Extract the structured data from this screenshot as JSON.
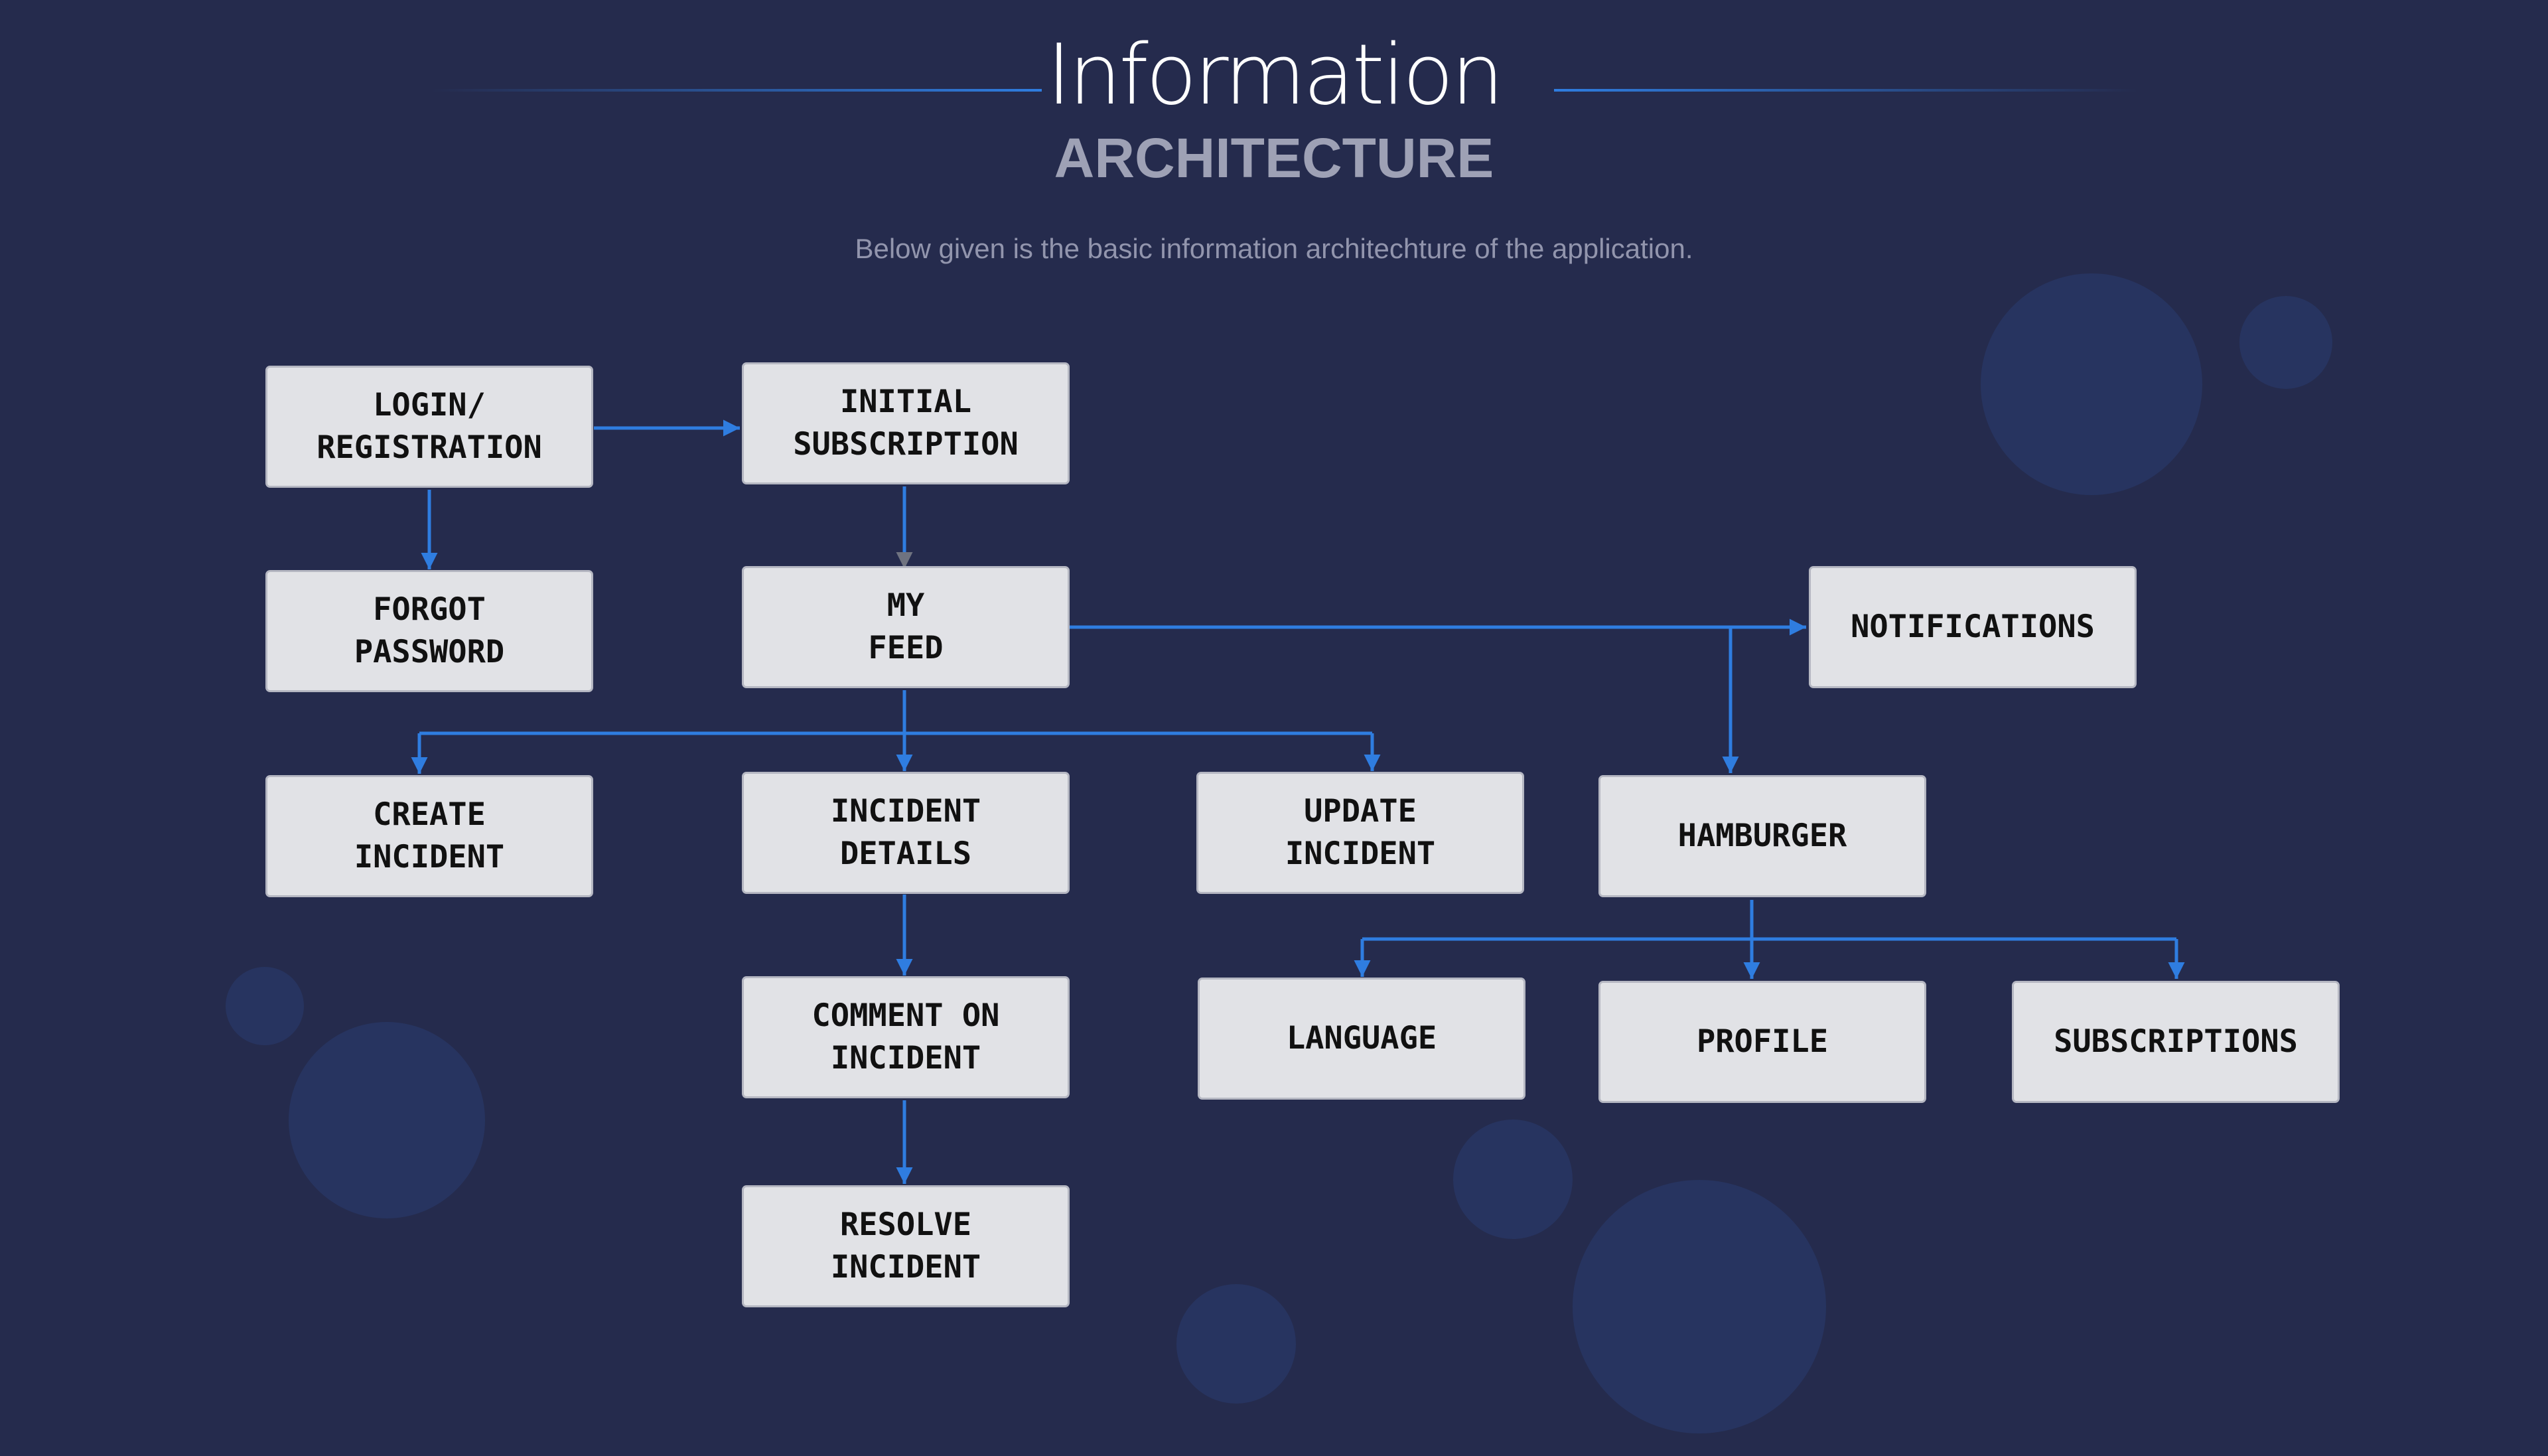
{
  "header": {
    "title": "Information",
    "subtitle": "ARCHITECTURE",
    "description": "Below given is the basic information architechture of the application."
  },
  "nodes": {
    "login": "LOGIN/\nREGISTRATION",
    "initial_subscription": "INITIAL\nSUBSCRIPTION",
    "forgot_password": "FORGOT\nPASSWORD",
    "my_feed": "MY\nFEED",
    "notifications": "NOTIFICATIONS",
    "create_incident": "CREATE\nINCIDENT",
    "incident_details": "INCIDENT\nDETAILS",
    "update_incident": "UPDATE\nINCIDENT",
    "hamburger": "HAMBURGER",
    "comment_on_incident": "COMMENT ON\nINCIDENT",
    "language": "LANGUAGE",
    "profile": "PROFILE",
    "subscriptions": "SUBSCRIPTIONS",
    "resolve_incident": "RESOLVE\nINCIDENT"
  },
  "colors": {
    "background": "#252b4d",
    "connector": "#2f7de0",
    "node_fill": "#e1e2e6",
    "node_text": "#111111",
    "bubble": "#273561"
  }
}
